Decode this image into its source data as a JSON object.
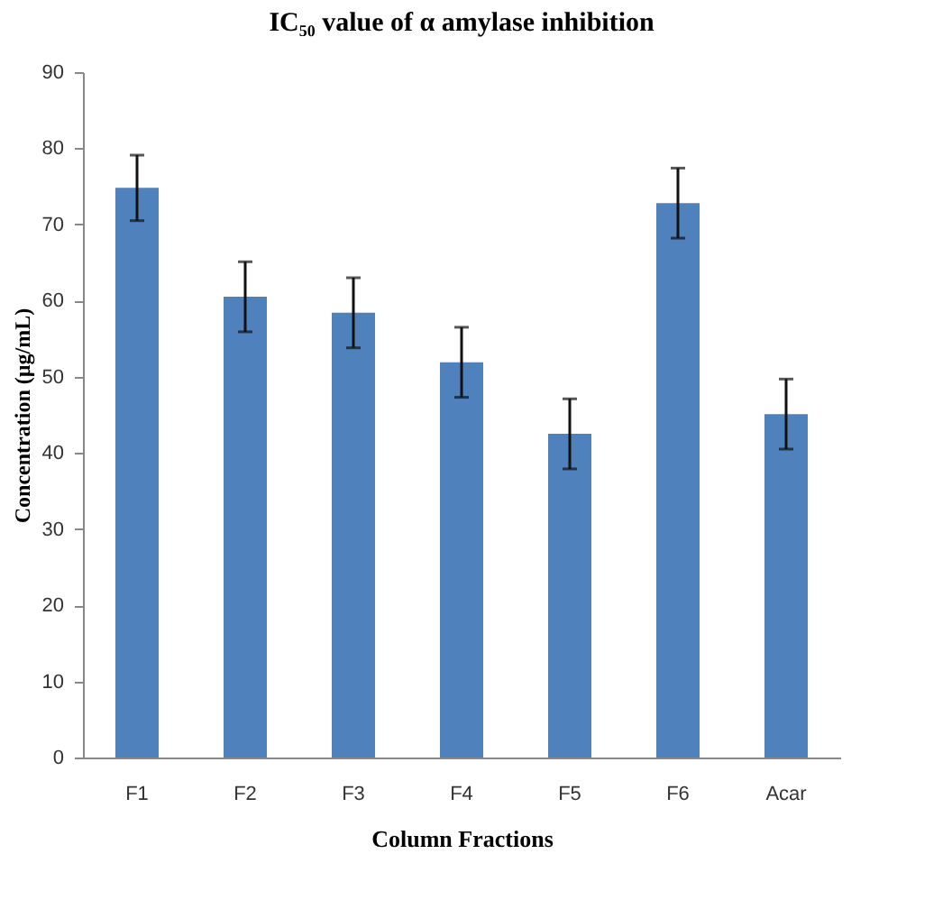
{
  "chart_data": {
    "type": "bar",
    "title": "IC₅₀ value of α amylase inhibition",
    "xlabel": "Column Fractions",
    "ylabel": "Concentration  (µg/mL)",
    "categories": [
      "F1",
      "F2",
      "F3",
      "F4",
      "F5",
      "F6",
      "Acar"
    ],
    "values": [
      74.8,
      60.5,
      58.4,
      51.9,
      42.5,
      72.8,
      45.1
    ],
    "errors": [
      4.3,
      4.6,
      4.6,
      4.6,
      4.6,
      4.6,
      4.6
    ],
    "color": "#4f81bd",
    "ylim": [
      0,
      90
    ],
    "yticks": [
      0,
      10,
      20,
      30,
      40,
      50,
      60,
      70,
      80,
      90
    ],
    "grid": false
  }
}
